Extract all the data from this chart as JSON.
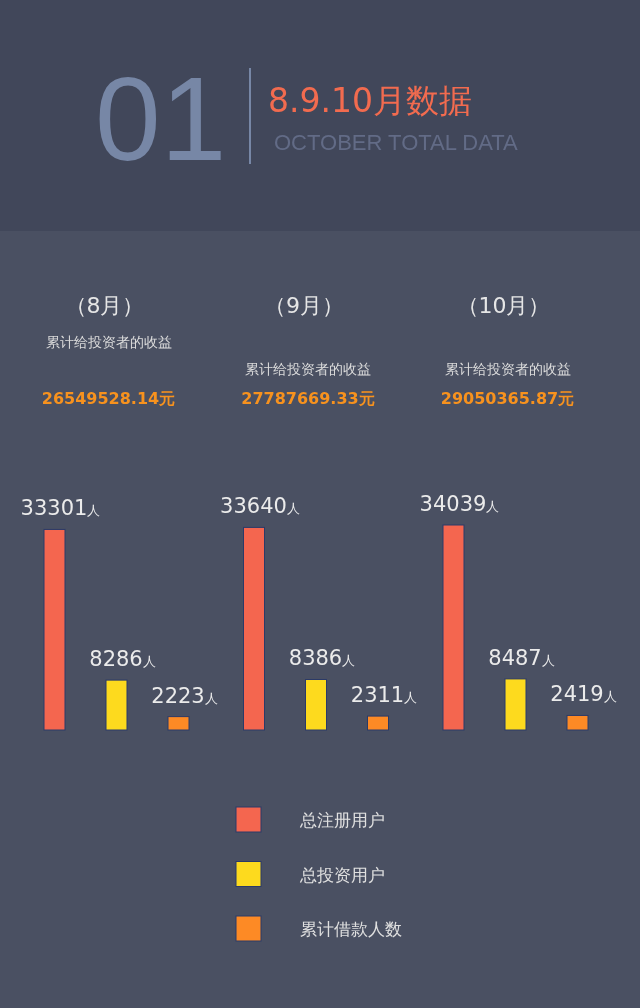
{
  "chart_data": {
    "type": "bar",
    "title": "8.9.10月数据",
    "subtitle": "OCTOBER TOTAL DATA",
    "categories": [
      "（8月）",
      "（9月）",
      "（10月）"
    ],
    "series": [
      {
        "name": "总注册用户",
        "color": "#f4664f",
        "values": [
          33301,
          33640,
          34039
        ],
        "value_labels": [
          "33301人",
          "33640人",
          "34039人"
        ]
      },
      {
        "name": "总投资用户",
        "color": "#fdda1e",
        "values": [
          8286,
          8386,
          8487
        ],
        "value_labels": [
          "8286人",
          "8386人",
          "8487人"
        ]
      },
      {
        "name": "累计借款人数",
        "color": "#fd8a25",
        "values": [
          2223,
          2311,
          2419
        ],
        "value_labels": [
          "2223人",
          "2311人",
          "2419人"
        ]
      }
    ],
    "legend": "bottom",
    "annotations": [
      "01",
      "累计给投资者的收益",
      "26549528.14元",
      "累计给投资者的收益",
      "27787669.33元",
      "累计给投资者的收益",
      "29050365.87元"
    ]
  }
}
